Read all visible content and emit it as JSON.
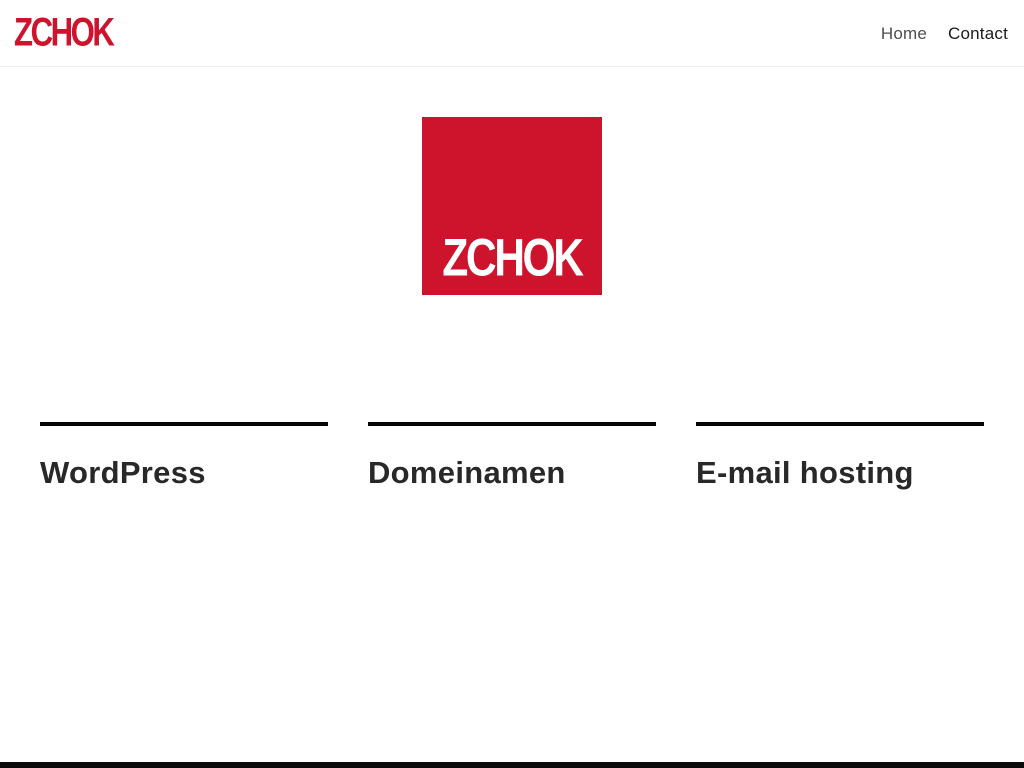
{
  "header": {
    "logo": "ZCHOK",
    "nav": {
      "home": "Home",
      "contact": "Contact"
    }
  },
  "hero": {
    "logo_text": "ZCHOK"
  },
  "services": {
    "columns": [
      {
        "title": "WordPress"
      },
      {
        "title": "Domeinamen"
      },
      {
        "title": "E-mail hosting"
      }
    ]
  },
  "colors": {
    "brand_red": "#ce132d",
    "heading_text": "#282828",
    "nav_inactive": "#4d4d4d",
    "nav_active": "#1a1a1a",
    "rule_black": "#050505",
    "footer_bar": "#0b0b0b"
  }
}
